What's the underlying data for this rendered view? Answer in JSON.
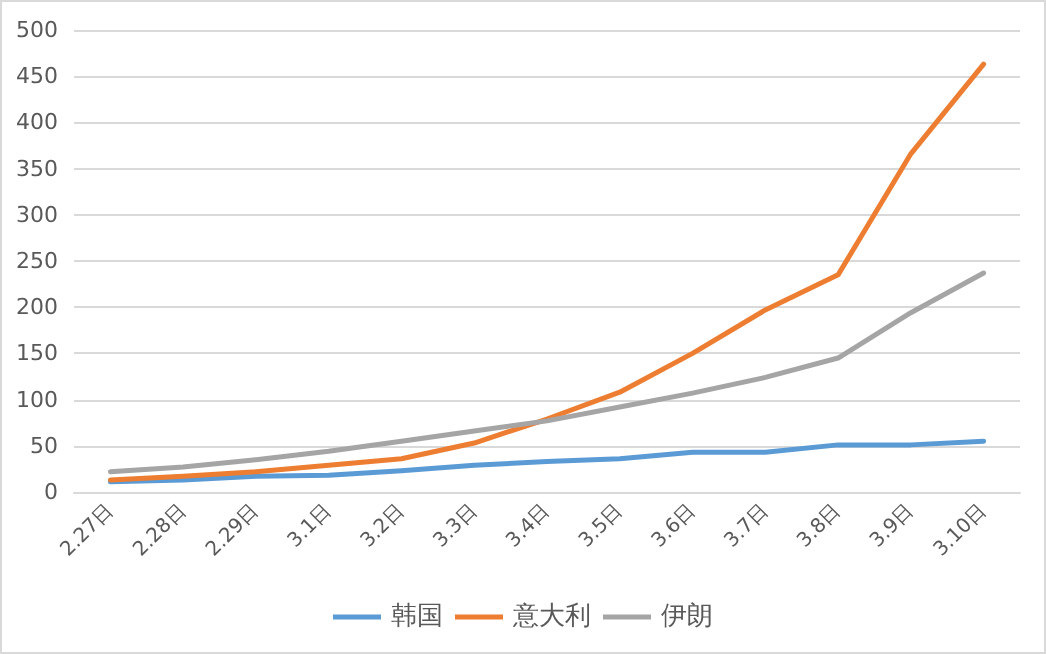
{
  "chart_data": {
    "type": "line",
    "categories": [
      "2.27日",
      "2.28日",
      "2.29日",
      "3.1日",
      "3.2日",
      "3.3日",
      "3.4日",
      "3.5日",
      "3.6日",
      "3.7日",
      "3.8日",
      "3.9日",
      "3.10日"
    ],
    "series": [
      {
        "name": "韩国",
        "color": "#5b9bd5",
        "values": [
          11,
          13,
          17,
          18,
          23,
          29,
          33,
          36,
          43,
          43,
          51,
          51,
          55
        ]
      },
      {
        "name": "意大利",
        "color": "#ed7d31",
        "values": [
          13,
          17,
          22,
          29,
          36,
          53,
          79,
          108,
          150,
          197,
          235,
          366,
          463
        ]
      },
      {
        "name": "伊朗",
        "color": "#a5a5a5",
        "values": [
          22,
          27,
          35,
          44,
          55,
          66,
          77,
          92,
          107,
          124,
          145,
          194,
          237
        ]
      }
    ],
    "ylim": [
      0,
      500
    ],
    "yticks": [
      0,
      50,
      100,
      150,
      200,
      250,
      300,
      350,
      400,
      450,
      500
    ],
    "grid": "y",
    "legend": "bottom",
    "marker": "none",
    "line_style": "solid"
  }
}
